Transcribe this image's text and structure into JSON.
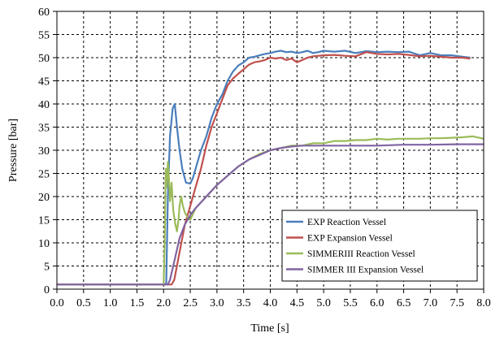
{
  "chart_data": {
    "type": "line",
    "xlabel": "Time [s]",
    "ylabel": "Pressure [bar]",
    "xlim": [
      0,
      8
    ],
    "ylim": [
      0,
      60
    ],
    "x_ticks": [
      "0.0",
      "0.5",
      "1.0",
      "1.5",
      "2.0",
      "2.5",
      "3.0",
      "3.5",
      "4.0",
      "4.5",
      "5.0",
      "5.5",
      "6.0",
      "6.5",
      "7.0",
      "7.5",
      "8.0"
    ],
    "y_ticks": [
      "0",
      "5",
      "10",
      "15",
      "20",
      "25",
      "30",
      "35",
      "40",
      "45",
      "50",
      "55",
      "60"
    ],
    "grid": "dashed",
    "legend_position": "bottom-right",
    "series": [
      {
        "name": "EXP Reaction Vessel",
        "color": "#4a7ebb",
        "points": [
          [
            0,
            1
          ],
          [
            2.0,
            1
          ],
          [
            2.05,
            1.2
          ],
          [
            2.08,
            20
          ],
          [
            2.12,
            33
          ],
          [
            2.17,
            39
          ],
          [
            2.21,
            40
          ],
          [
            2.25,
            35
          ],
          [
            2.3,
            30
          ],
          [
            2.35,
            26
          ],
          [
            2.42,
            23
          ],
          [
            2.5,
            22.8
          ],
          [
            2.55,
            24
          ],
          [
            2.6,
            26
          ],
          [
            2.7,
            30
          ],
          [
            2.8,
            33
          ],
          [
            2.9,
            37
          ],
          [
            3.0,
            40
          ],
          [
            3.1,
            42
          ],
          [
            3.2,
            45
          ],
          [
            3.3,
            47
          ],
          [
            3.4,
            48.3
          ],
          [
            3.5,
            49
          ],
          [
            3.6,
            50
          ],
          [
            3.7,
            50.2
          ],
          [
            3.8,
            50.5
          ],
          [
            3.9,
            50.8
          ],
          [
            4.0,
            51
          ],
          [
            4.1,
            51.3
          ],
          [
            4.2,
            51.5
          ],
          [
            4.3,
            51.2
          ],
          [
            4.4,
            51.3
          ],
          [
            4.5,
            51
          ],
          [
            4.6,
            51.2
          ],
          [
            4.7,
            51.5
          ],
          [
            4.8,
            51
          ],
          [
            4.9,
            51.2
          ],
          [
            5.0,
            51.5
          ],
          [
            5.2,
            51.3
          ],
          [
            5.4,
            51.5
          ],
          [
            5.6,
            51
          ],
          [
            5.8,
            51.4
          ],
          [
            6.0,
            51.2
          ],
          [
            6.2,
            51.3
          ],
          [
            6.4,
            51.2
          ],
          [
            6.6,
            51.3
          ],
          [
            6.8,
            50.5
          ],
          [
            7.0,
            51
          ],
          [
            7.2,
            50.5
          ],
          [
            7.4,
            50.5
          ],
          [
            7.6,
            50.2
          ],
          [
            7.75,
            50
          ]
        ]
      },
      {
        "name": "EXP Expansion Vessel",
        "color": "#c0504d",
        "points": [
          [
            0,
            1
          ],
          [
            2.15,
            1
          ],
          [
            2.2,
            2
          ],
          [
            2.3,
            8
          ],
          [
            2.4,
            14
          ],
          [
            2.5,
            18
          ],
          [
            2.6,
            22
          ],
          [
            2.7,
            26
          ],
          [
            2.8,
            31
          ],
          [
            2.9,
            35
          ],
          [
            3.0,
            38
          ],
          [
            3.1,
            41
          ],
          [
            3.2,
            44
          ],
          [
            3.3,
            45.5
          ],
          [
            3.4,
            46.5
          ],
          [
            3.5,
            47.5
          ],
          [
            3.6,
            48.5
          ],
          [
            3.7,
            49
          ],
          [
            3.8,
            49.2
          ],
          [
            3.9,
            49.5
          ],
          [
            4.0,
            50
          ],
          [
            4.1,
            49.8
          ],
          [
            4.2,
            50
          ],
          [
            4.3,
            49.5
          ],
          [
            4.4,
            49.8
          ],
          [
            4.5,
            49
          ],
          [
            4.6,
            49.5
          ],
          [
            4.7,
            50
          ],
          [
            4.8,
            50.3
          ],
          [
            5.0,
            50.5
          ],
          [
            5.2,
            50.6
          ],
          [
            5.4,
            50.4
          ],
          [
            5.6,
            50.3
          ],
          [
            5.8,
            51.2
          ],
          [
            6.0,
            50.8
          ],
          [
            6.2,
            50.7
          ],
          [
            6.4,
            50.8
          ],
          [
            6.6,
            50.6
          ],
          [
            6.8,
            50.3
          ],
          [
            7.0,
            50.4
          ],
          [
            7.2,
            50.2
          ],
          [
            7.4,
            50
          ],
          [
            7.6,
            50
          ],
          [
            7.75,
            49.8
          ]
        ]
      },
      {
        "name": "SIMMERIII Reaction Vessel",
        "color": "#9bbb59",
        "points": [
          [
            0,
            1
          ],
          [
            2.0,
            1
          ],
          [
            2.02,
            10
          ],
          [
            2.04,
            26
          ],
          [
            2.06,
            22
          ],
          [
            2.08,
            27.5
          ],
          [
            2.1,
            24
          ],
          [
            2.12,
            19
          ],
          [
            2.15,
            23
          ],
          [
            2.18,
            17
          ],
          [
            2.22,
            14
          ],
          [
            2.25,
            12.5
          ],
          [
            2.28,
            15
          ],
          [
            2.3,
            18
          ],
          [
            2.33,
            20
          ],
          [
            2.36,
            18
          ],
          [
            2.4,
            16.5
          ],
          [
            2.45,
            15.5
          ],
          [
            2.5,
            15
          ],
          [
            2.6,
            17.5
          ],
          [
            2.8,
            20
          ],
          [
            3.0,
            22.5
          ],
          [
            3.2,
            24.5
          ],
          [
            3.4,
            26.5
          ],
          [
            3.6,
            28
          ],
          [
            3.8,
            29.2
          ],
          [
            4.0,
            30
          ],
          [
            4.2,
            30.5
          ],
          [
            4.4,
            31
          ],
          [
            4.6,
            31
          ],
          [
            4.8,
            31.5
          ],
          [
            5.0,
            31.5
          ],
          [
            5.2,
            32
          ],
          [
            5.4,
            32
          ],
          [
            5.6,
            32.2
          ],
          [
            5.8,
            32.2
          ],
          [
            6.0,
            32.5
          ],
          [
            6.2,
            32.3
          ],
          [
            6.4,
            32.5
          ],
          [
            6.6,
            32.5
          ],
          [
            6.8,
            32.5
          ],
          [
            7.0,
            32.6
          ],
          [
            7.2,
            32.6
          ],
          [
            7.4,
            32.7
          ],
          [
            7.6,
            32.8
          ],
          [
            7.8,
            33
          ],
          [
            8.0,
            32.5
          ]
        ]
      },
      {
        "name": "SIMMER III Expansion Vessel",
        "color": "#8064a2",
        "points": [
          [
            0,
            1
          ],
          [
            2.08,
            1
          ],
          [
            2.12,
            2
          ],
          [
            2.2,
            6
          ],
          [
            2.3,
            11
          ],
          [
            2.4,
            14
          ],
          [
            2.5,
            16
          ],
          [
            2.6,
            17.5
          ],
          [
            2.8,
            20
          ],
          [
            3.0,
            22.5
          ],
          [
            3.2,
            24.5
          ],
          [
            3.4,
            26.5
          ],
          [
            3.6,
            28
          ],
          [
            3.8,
            29
          ],
          [
            4.0,
            30
          ],
          [
            4.2,
            30.5
          ],
          [
            4.4,
            30.8
          ],
          [
            4.6,
            31
          ],
          [
            4.8,
            31
          ],
          [
            5.0,
            31
          ],
          [
            5.5,
            31
          ],
          [
            6.0,
            31
          ],
          [
            6.5,
            31.2
          ],
          [
            7.0,
            31.2
          ],
          [
            7.5,
            31.3
          ],
          [
            8.0,
            31.3
          ]
        ]
      }
    ]
  }
}
